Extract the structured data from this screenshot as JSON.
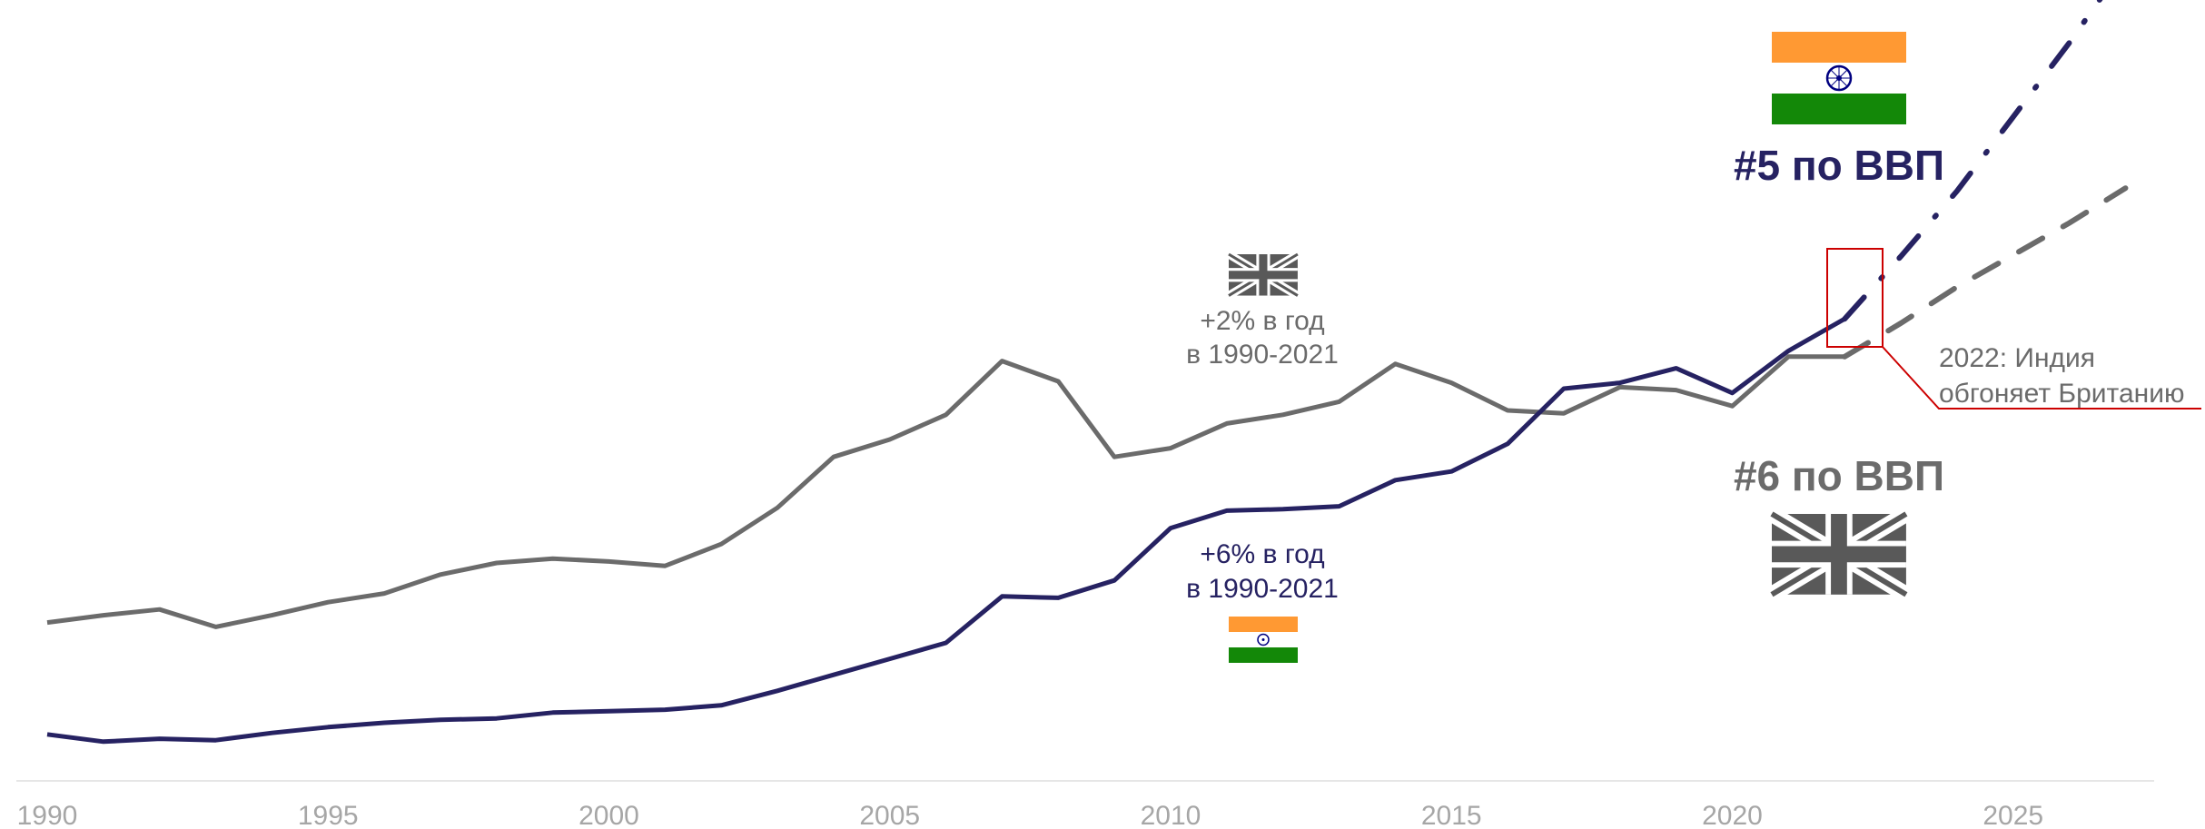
{
  "chart_data": {
    "type": "line",
    "title": "",
    "xlabel": "",
    "ylabel": "",
    "xlim": [
      1990,
      2027
    ],
    "x_ticks": [
      "1990",
      "1995",
      "2000",
      "2005",
      "2010",
      "2015",
      "2020",
      "2025"
    ],
    "grid": false,
    "legend": "none",
    "series": [
      {
        "key": "uk",
        "color": "#6b6b6b",
        "x": [
          1990,
          1991,
          1992,
          1993,
          1994,
          1995,
          1996,
          1997,
          1998,
          1999,
          2000,
          2001,
          2002,
          2003,
          2004,
          2005,
          2006,
          2007,
          2008,
          2009,
          2010,
          2011,
          2012,
          2013,
          2014,
          2015,
          2016,
          2017,
          2018,
          2019,
          2020,
          2021,
          2022
        ],
        "values": [
          1.09,
          1.14,
          1.18,
          1.06,
          1.14,
          1.23,
          1.29,
          1.42,
          1.5,
          1.53,
          1.51,
          1.48,
          1.63,
          1.88,
          2.23,
          2.35,
          2.52,
          2.89,
          2.75,
          2.23,
          2.29,
          2.46,
          2.52,
          2.61,
          2.87,
          2.74,
          2.55,
          2.53,
          2.71,
          2.69,
          2.58,
          2.92,
          2.92
        ],
        "forecast": {
          "x": [
            2022,
            2023,
            2024,
            2025,
            2026,
            2027
          ],
          "values": [
            2.92,
            3.15,
            3.4,
            3.62,
            3.84,
            4.08
          ]
        }
      },
      {
        "key": "india",
        "color": "#262262",
        "x": [
          1990,
          1991,
          1992,
          1993,
          1994,
          1995,
          1996,
          1997,
          1998,
          1999,
          2000,
          2001,
          2002,
          2003,
          2004,
          2005,
          2006,
          2007,
          2008,
          2009,
          2010,
          2011,
          2012,
          2013,
          2014,
          2015,
          2016,
          2017,
          2018,
          2019,
          2020,
          2021,
          2022
        ],
        "values": [
          0.32,
          0.27,
          0.29,
          0.28,
          0.33,
          0.37,
          0.4,
          0.42,
          0.43,
          0.47,
          0.48,
          0.49,
          0.52,
          0.62,
          0.73,
          0.84,
          0.95,
          1.27,
          1.26,
          1.38,
          1.74,
          1.86,
          1.87,
          1.89,
          2.07,
          2.13,
          2.32,
          2.7,
          2.74,
          2.84,
          2.67,
          2.96,
          3.18
        ],
        "forecast": {
          "x": [
            2022,
            2023,
            2024,
            2025,
            2026,
            2027
          ],
          "values": [
            3.18,
            3.61,
            4.06,
            4.57,
            5.08,
            5.63
          ]
        }
      }
    ],
    "annotations": {
      "uk_growth": [
        "+2% в год",
        "в 1990-2021"
      ],
      "india_growth": [
        "+6% в год",
        "в 1990-2021"
      ],
      "callout": [
        "2022: Индия",
        "обгоняет Британию"
      ],
      "callout_color": "#cc0000",
      "india_rank": "#5 по ВВП",
      "uk_rank": "#6 по ВВП"
    },
    "flags": {
      "india": {
        "top": "#ff9933",
        "middle": "#ffffff",
        "bottom": "#138808",
        "chakra": "#000080"
      },
      "uk": {
        "color": "#595959"
      }
    }
  }
}
